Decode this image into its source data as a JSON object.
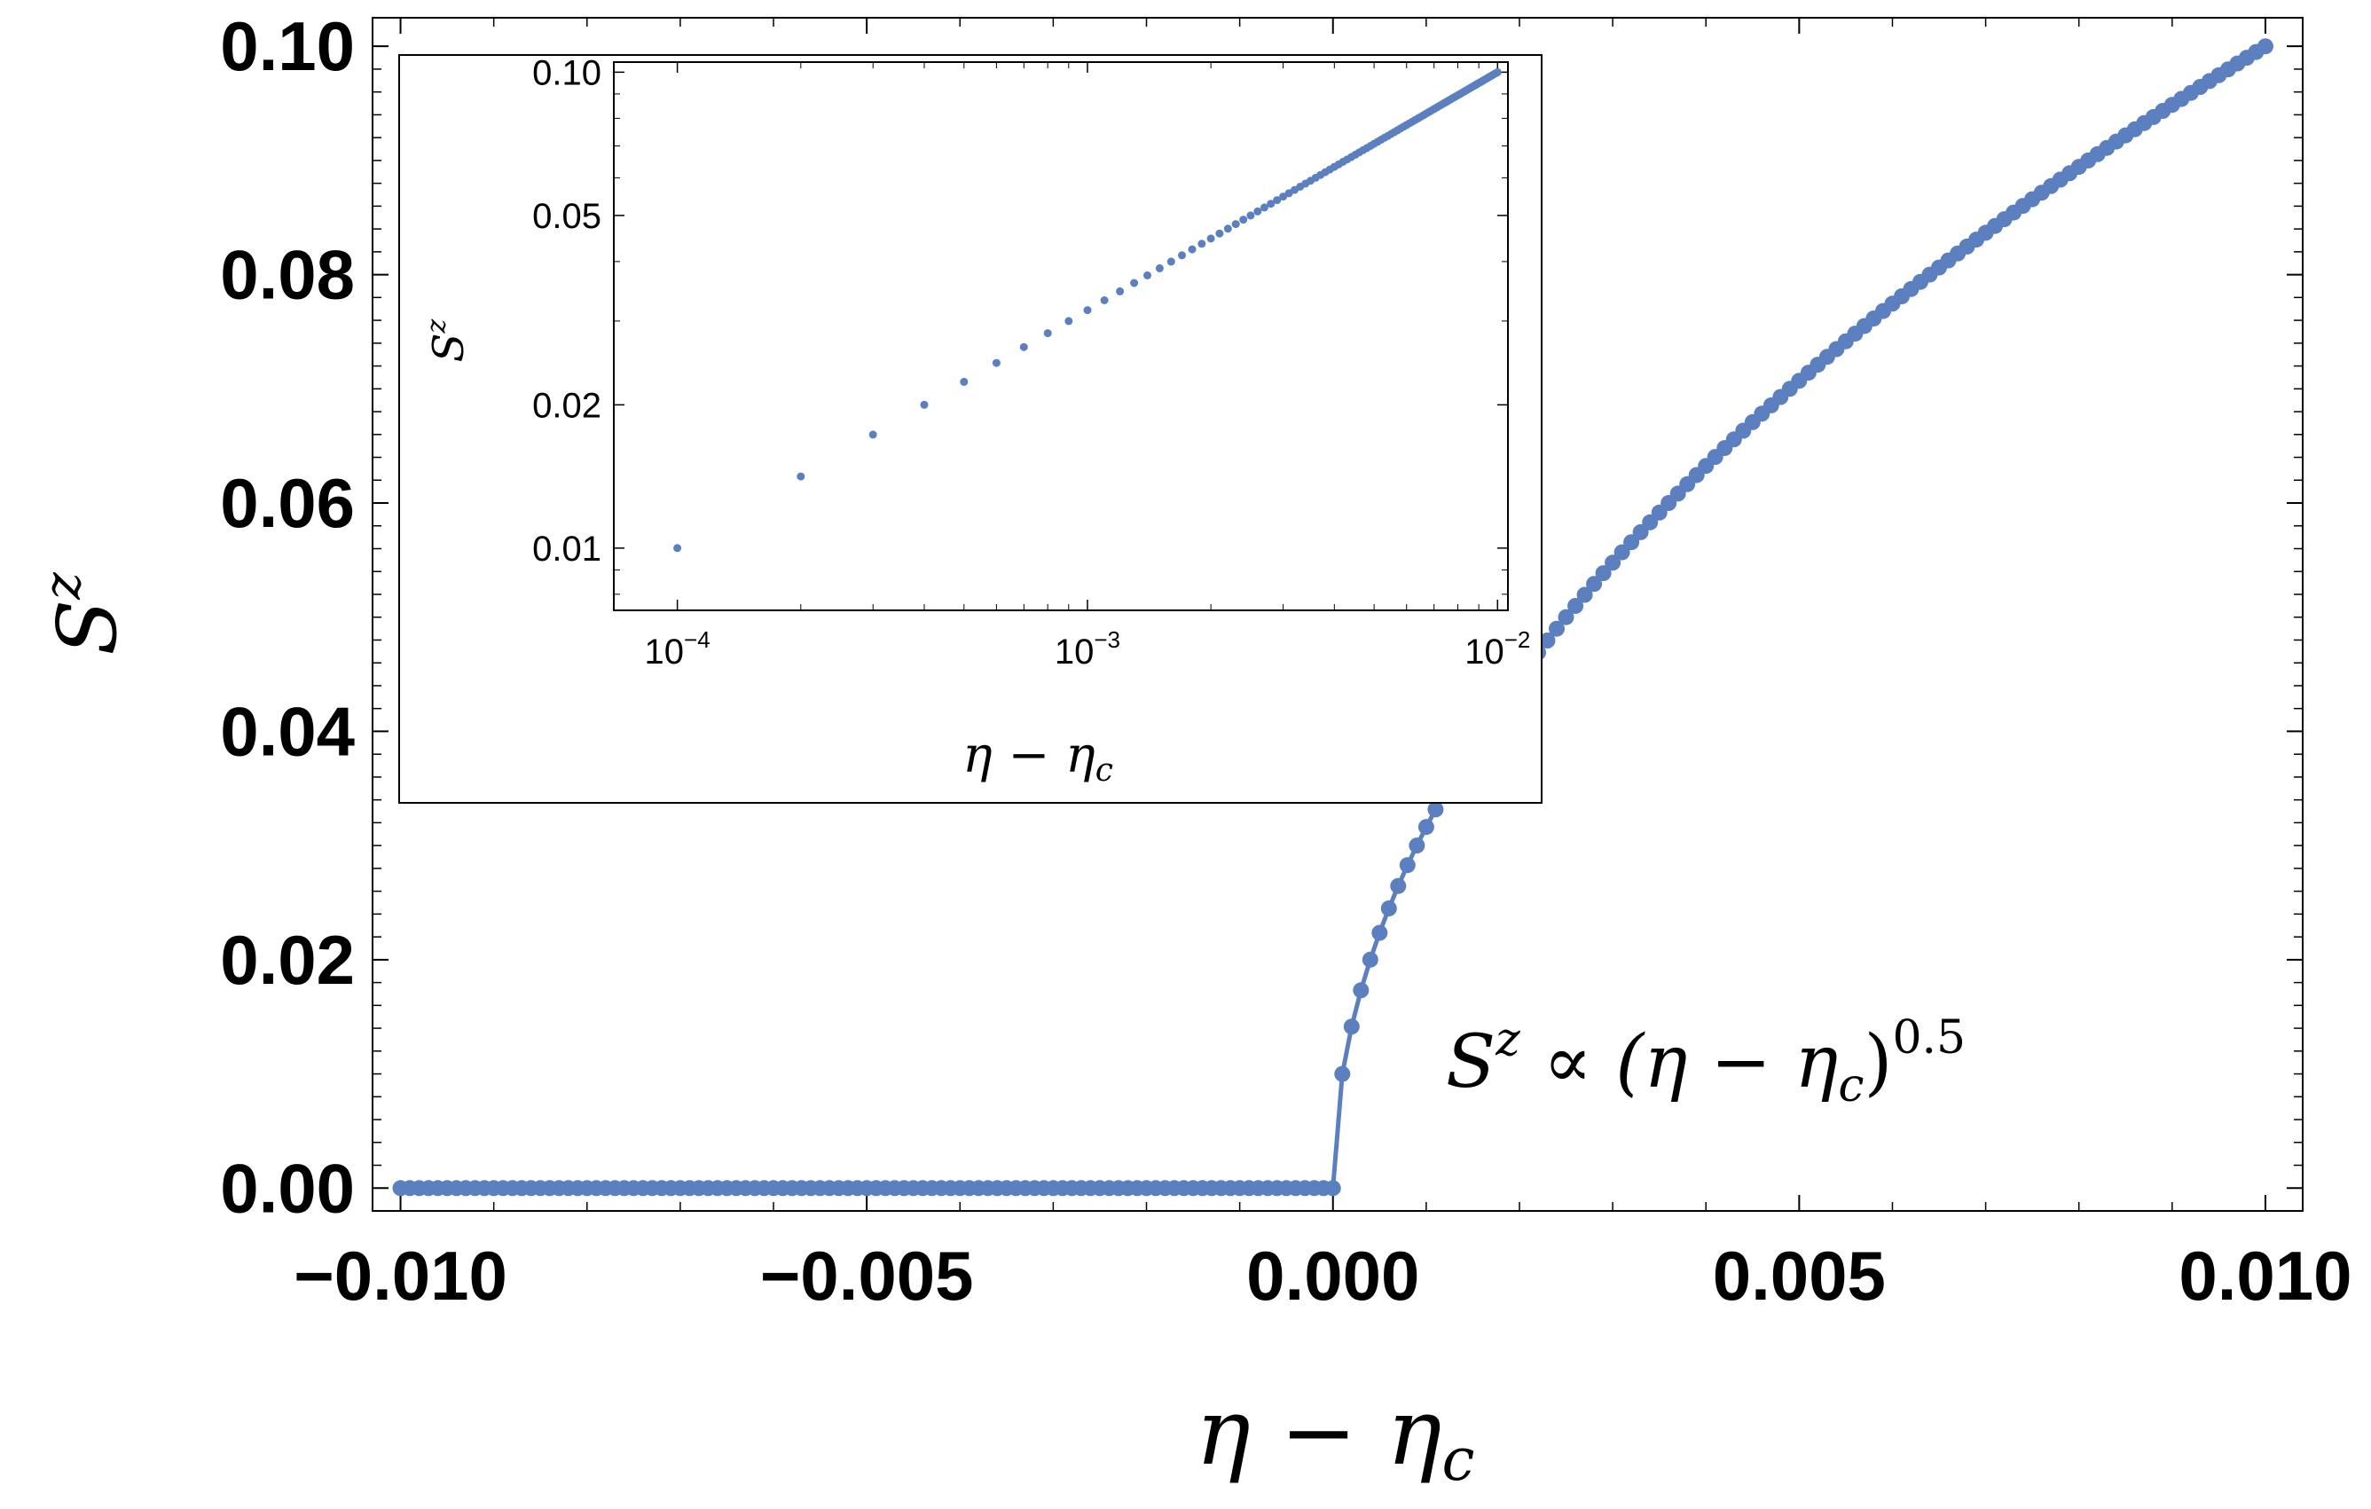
{
  "colors": {
    "series": "#5b7fbf",
    "axes": "#000000",
    "background": "#ffffff"
  },
  "chart_data": [
    {
      "type": "line",
      "title": "",
      "xlabel": {
        "base": "η − η",
        "sub": "c"
      },
      "ylabel": {
        "base": "S",
        "sup": "z"
      },
      "xlim": [
        -0.0103,
        0.0104
      ],
      "ylim": [
        -0.002,
        0.1025
      ],
      "xticks": [
        -0.01,
        -0.005,
        0.0,
        0.005,
        0.01
      ],
      "xtick_labels": [
        "−0.010",
        "−0.005",
        "0.000",
        "0.005",
        "0.010"
      ],
      "yticks": [
        0.0,
        0.02,
        0.04,
        0.06,
        0.08,
        0.1
      ],
      "ytick_labels": [
        "0.00",
        "0.02",
        "0.04",
        "0.06",
        "0.08",
        "0.10"
      ],
      "grid": false,
      "markers": true,
      "series": [
        {
          "model": "Sz = (η − ηc)^0.5 for η > ηc, 0 otherwise",
          "x_start": -0.01,
          "x_end": 0.01,
          "x_step": 0.0001
        }
      ],
      "annotation": {
        "base": "S",
        "sup1": "z",
        "mid": " ∝ (η − η",
        "sub": "c",
        "close": ")",
        "sup2": "0.5"
      }
    },
    {
      "type": "scatter",
      "title": "",
      "xscale": "log",
      "yscale": "log",
      "xlabel": {
        "base": "η − η",
        "sub": "c"
      },
      "ylabel": {
        "base": "S",
        "sup": "z"
      },
      "xlim": [
        7e-05,
        0.0106
      ],
      "ylim": [
        0.0074,
        0.105
      ],
      "xticks": [
        0.0001,
        0.001,
        0.01
      ],
      "xtick_labels": [
        {
          "base": "10",
          "exp": "−4"
        },
        {
          "base": "10",
          "exp": "−3"
        },
        {
          "base": "10",
          "exp": "−2"
        }
      ],
      "yticks": [
        0.01,
        0.02,
        0.05,
        0.1
      ],
      "ytick_labels": [
        "0.01",
        "0.02",
        "0.05",
        "0.10"
      ],
      "grid": false,
      "series": [
        {
          "model": "Sz = (η − ηc)^0.5",
          "x_start": 0.0001,
          "x_end": 0.01,
          "x_step": 0.0001
        }
      ]
    }
  ]
}
